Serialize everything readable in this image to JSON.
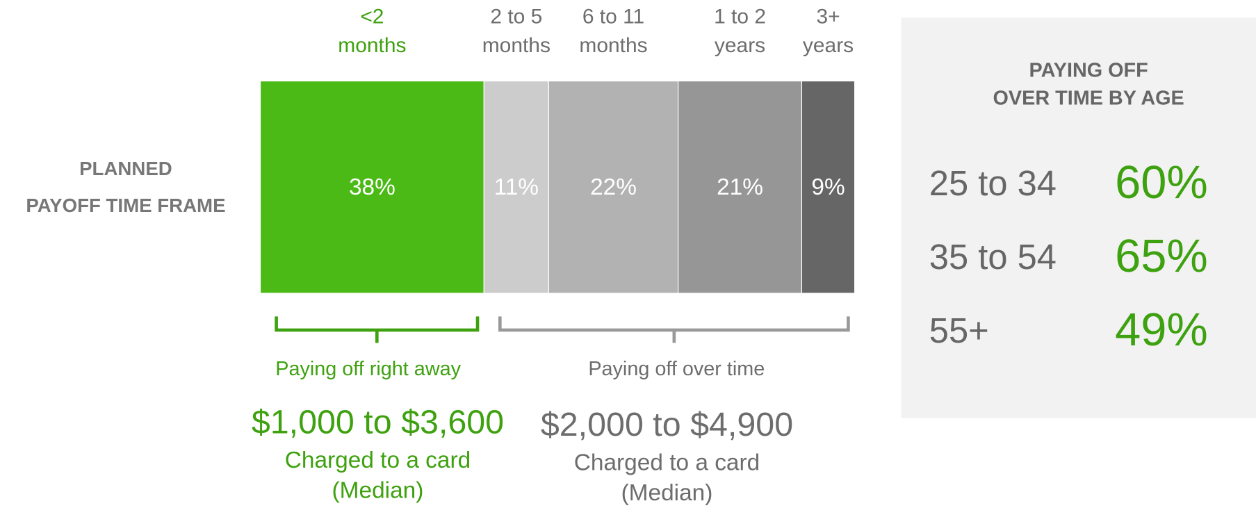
{
  "chart_data": {
    "type": "bar",
    "ylabel": [
      "PLANNED",
      "PAYOFF TIME FRAME"
    ],
    "categories": [
      "<2 months",
      "2 to 5 months",
      "6 to 11 months",
      "1 to 2 years",
      "3+ years"
    ],
    "values": [
      38,
      11,
      22,
      21,
      9
    ],
    "value_labels": [
      "38%",
      "11%",
      "22%",
      "21%",
      "9%"
    ],
    "colors": [
      "#4cba16",
      "#cccccc",
      "#b2b2b2",
      "#969696",
      "#666666"
    ],
    "groups": [
      {
        "label": "Paying off right away",
        "amount": "$1,000 to $3,600",
        "caption": [
          "Charged to a card",
          "(Median)"
        ],
        "color": "#3ea10f"
      },
      {
        "label": "Paying off over time",
        "amount": "$2,000 to $4,900",
        "caption": [
          "Charged to a card",
          "(Median)"
        ],
        "color": "#6d6d6d"
      }
    ]
  },
  "panel": {
    "title": [
      "PAYING OFF",
      "OVER TIME BY AGE"
    ],
    "categories": [
      "25 to 34",
      "35 to 54",
      "55+"
    ],
    "values": [
      60,
      65,
      49
    ],
    "value_labels": [
      "60%",
      "65%",
      "49%"
    ],
    "color": "#3ea10f"
  }
}
